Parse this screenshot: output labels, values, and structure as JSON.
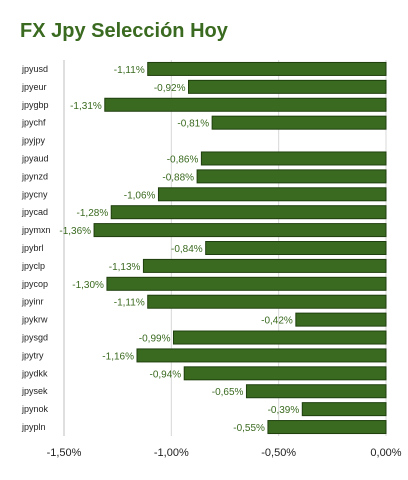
{
  "chart_data": {
    "type": "bar",
    "orientation": "horizontal",
    "title": "FX Jpy Selección Hoy",
    "categories": [
      "jpyusd",
      "jpyeur",
      "jpygbp",
      "jpychf",
      "jpyjpy",
      "jpyaud",
      "jpynzd",
      "jpycny",
      "jpycad",
      "jpymxn",
      "jpybrl",
      "jpyclp",
      "jpycop",
      "jpyinr",
      "jpykrw",
      "jpysgd",
      "jpytry",
      "jpydkk",
      "jpysek",
      "jpynok",
      "jpypln"
    ],
    "values": [
      -1.11,
      -0.92,
      -1.31,
      -0.81,
      null,
      -0.86,
      -0.88,
      -1.06,
      -1.28,
      -1.36,
      -0.84,
      -1.13,
      -1.3,
      -1.11,
      -0.42,
      -0.99,
      -1.16,
      -0.94,
      -0.65,
      -0.39,
      -0.55
    ],
    "value_labels": [
      "-1,11%",
      "-0,92%",
      "-1,31%",
      "-0,81%",
      "",
      "-0,86%",
      "-0,88%",
      "-1,06%",
      "-1,28%",
      "-1,36%",
      "-0,84%",
      "-1,13%",
      "-1,30%",
      "-1,11%",
      "-0,42%",
      "-0,99%",
      "-1,16%",
      "-0,94%",
      "-0,65%",
      "-0,39%",
      "-0,55%"
    ],
    "xlim": [
      -1.5,
      0
    ],
    "xticks": [
      -1.5,
      -1.0,
      -0.5,
      0
    ],
    "xtick_labels": [
      "-1,50%",
      "-1,00%",
      "-0,50%",
      "0,00%"
    ],
    "grid": true,
    "colors": {
      "bar": "#3a6a1f",
      "bar_edge": "#1f3f0e",
      "title": "#3a6a1f",
      "grid": "#d8d8d8",
      "value_text": "#3a6a1f"
    }
  }
}
